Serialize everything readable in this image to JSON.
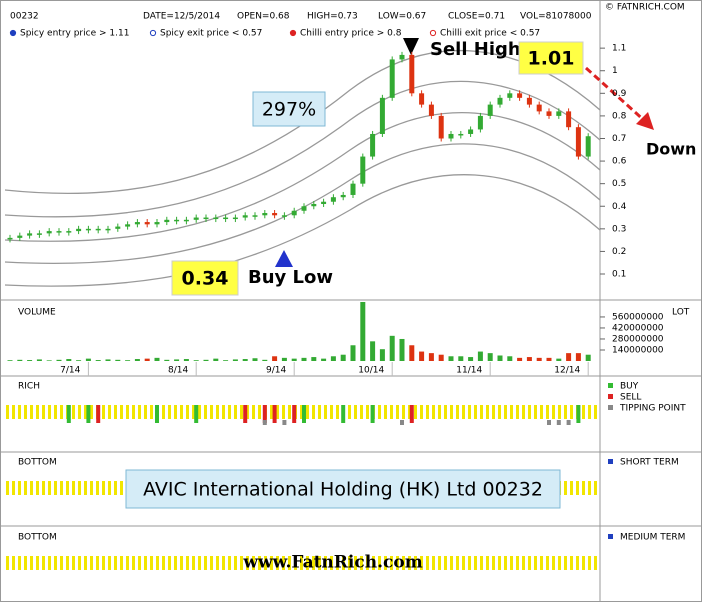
{
  "chart_data": [
    {
      "type": "candle",
      "title": "00232",
      "stats": [
        "DATE=12/5/2014",
        "OPEN=0.68",
        "HIGH=0.73",
        "LOW=0.67",
        "CLOSE=0.71",
        "VOL=81078000"
      ],
      "credit": "© FATNRICH.COM",
      "legend": [
        {
          "label": "Spicy entry price > 1.11",
          "color": "#1f3fbf",
          "marker": "filled"
        },
        {
          "label": "Spicy exit price < 0.57",
          "color": "#1f3fbf",
          "marker": "open"
        },
        {
          "label": "Chilli entry price > 0.8",
          "color": "#dd2222",
          "marker": "filled"
        },
        {
          "label": "Chilli exit price < 0.57",
          "color": "#dd2222",
          "marker": "open"
        }
      ],
      "categories": [
        null,
        null,
        null,
        null,
        null,
        null,
        null,
        null,
        "7/14",
        null,
        null,
        null,
        null,
        null,
        null,
        null,
        null,
        null,
        null,
        "8/14",
        null,
        null,
        null,
        null,
        null,
        null,
        null,
        null,
        null,
        "9/14",
        null,
        null,
        null,
        null,
        null,
        null,
        null,
        null,
        null,
        "10/14",
        null,
        null,
        null,
        null,
        null,
        null,
        null,
        null,
        null,
        "11/14",
        null,
        null,
        null,
        null,
        null,
        null,
        null,
        null,
        null,
        "12/14"
      ],
      "values": [
        0.26,
        0.27,
        0.28,
        0.28,
        0.29,
        0.29,
        0.29,
        0.3,
        0.3,
        0.3,
        0.3,
        0.31,
        0.32,
        0.33,
        0.32,
        0.33,
        0.34,
        0.34,
        0.34,
        0.35,
        0.35,
        0.35,
        0.35,
        0.35,
        0.36,
        0.36,
        0.37,
        0.36,
        0.36,
        0.38,
        0.4,
        0.41,
        0.42,
        0.44,
        0.45,
        0.5,
        0.62,
        0.72,
        0.88,
        1.05,
        1.07,
        0.9,
        0.85,
        0.8,
        0.7,
        0.72,
        0.72,
        0.74,
        0.8,
        0.85,
        0.88,
        0.9,
        0.88,
        0.85,
        0.82,
        0.8,
        0.82,
        0.75,
        0.62,
        0.71
      ],
      "up_color": "#33aa33",
      "down_color": "#dd3311",
      "ylim": [
        0,
        1.26
      ],
      "yticks": [
        0.1,
        0.2,
        0.3,
        0.4,
        0.5,
        0.6,
        0.7,
        0.8,
        0.9,
        1,
        1.1
      ],
      "gain_label": "297%",
      "buy_price": "0.34",
      "buy_text": "Buy Low",
      "sell_text": "Sell High",
      "sell_price": "1.01",
      "trend_text": "Down"
    },
    {
      "type": "bar",
      "title": "VOLUME",
      "unit_label": "LOT",
      "values": [
        10000000,
        15000000,
        12000000,
        20000000,
        8000000,
        15000000,
        25000000,
        10000000,
        30000000,
        12000000,
        20000000,
        15000000,
        10000000,
        25000000,
        30000000,
        40000000,
        15000000,
        20000000,
        25000000,
        10000000,
        15000000,
        30000000,
        10000000,
        20000000,
        25000000,
        35000000,
        15000000,
        60000000,
        40000000,
        30000000,
        40000000,
        50000000,
        30000000,
        60000000,
        80000000,
        200000000,
        750000000,
        250000000,
        150000000,
        320000000,
        280000000,
        200000000,
        120000000,
        100000000,
        80000000,
        60000000,
        60000000,
        50000000,
        120000000,
        100000000,
        70000000,
        60000000,
        40000000,
        50000000,
        40000000,
        40000000,
        30000000,
        100000000,
        100000000,
        80000000
      ],
      "ylim": [
        0,
        750000000
      ],
      "yticks": [
        140000000,
        280000000,
        420000000,
        560000000
      ]
    },
    {
      "type": "signal",
      "title": "RICH",
      "series": [
        {
          "name": "BUY",
          "color": "#33bb33",
          "values": [
            null,
            null,
            null,
            null,
            null,
            null,
            1,
            null,
            1,
            null,
            null,
            null,
            null,
            null,
            null,
            1,
            null,
            null,
            null,
            1,
            null,
            null,
            null,
            null,
            null,
            null,
            null,
            null,
            null,
            null,
            1,
            null,
            null,
            null,
            1,
            null,
            null,
            1,
            null,
            null,
            null,
            null,
            null,
            null,
            null,
            null,
            null,
            null,
            null,
            null,
            null,
            null,
            null,
            null,
            null,
            null,
            null,
            null,
            1,
            null
          ]
        },
        {
          "name": "SELL",
          "color": "#dd2222",
          "values": [
            null,
            null,
            null,
            null,
            null,
            null,
            null,
            null,
            null,
            1,
            null,
            null,
            null,
            null,
            null,
            null,
            null,
            null,
            null,
            null,
            null,
            null,
            null,
            null,
            1,
            null,
            1,
            1,
            null,
            1,
            null,
            null,
            null,
            null,
            null,
            null,
            null,
            null,
            null,
            null,
            null,
            1,
            null,
            null,
            null,
            null,
            null,
            null,
            null,
            null,
            null,
            null,
            null,
            null,
            null,
            null,
            null,
            null,
            null,
            null
          ]
        },
        {
          "name": "TIPPING POINT",
          "color": "#888888",
          "values": [
            null,
            null,
            null,
            null,
            null,
            null,
            null,
            null,
            null,
            null,
            null,
            null,
            null,
            null,
            null,
            null,
            null,
            null,
            null,
            null,
            null,
            null,
            null,
            null,
            null,
            null,
            1,
            null,
            1,
            null,
            null,
            null,
            null,
            null,
            null,
            null,
            null,
            null,
            null,
            null,
            1,
            null,
            null,
            null,
            null,
            null,
            null,
            null,
            null,
            null,
            null,
            null,
            null,
            null,
            null,
            1,
            1,
            1,
            null,
            null
          ]
        }
      ]
    },
    {
      "type": "strip",
      "title": "BOTTOM",
      "legend": "SHORT TERM",
      "color": "#1f3fbf"
    },
    {
      "type": "strip",
      "title": "BOTTOM",
      "legend": "MEDIUM TERM",
      "color": "#1f3fbf"
    }
  ],
  "banner": "AVIC International Holding (HK) Ltd 00232",
  "website": "www.FatnRich.com"
}
